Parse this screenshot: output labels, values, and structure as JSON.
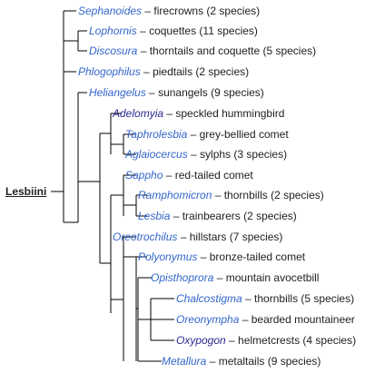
{
  "root": "Lesbiini",
  "leaves": [
    {
      "genus": "Sephanoides",
      "desc": "firecrowns (2 species)",
      "visited": false
    },
    {
      "genus": "Lophornis",
      "desc": "coquettes (11 species)",
      "visited": false
    },
    {
      "genus": "Discosura",
      "desc": "thorntails and coquette (5 species)",
      "visited": false
    },
    {
      "genus": "Phlogophilus",
      "desc": "piedtails (2 species)",
      "visited": false
    },
    {
      "genus": "Heliangelus",
      "desc": "sunangels (9 species)",
      "visited": false
    },
    {
      "genus": "Adelomyia",
      "desc": "speckled hummingbird",
      "visited": true
    },
    {
      "genus": "Taphrolesbia",
      "desc": "grey-bellied comet",
      "visited": false
    },
    {
      "genus": "Aglaiocercus",
      "desc": "sylphs (3 species)",
      "visited": false
    },
    {
      "genus": "Sappho",
      "desc": "red-tailed comet",
      "visited": false
    },
    {
      "genus": "Ramphomicron",
      "desc": "thornbills (2 species)",
      "visited": false
    },
    {
      "genus": "Lesbia",
      "desc": "trainbearers (2 species)",
      "visited": false
    },
    {
      "genus": "Oreotrochilus",
      "desc": "hillstars (7 species)",
      "visited": false
    },
    {
      "genus": "Polyonymus",
      "desc": "bronze-tailed comet",
      "visited": false
    },
    {
      "genus": "Opisthoprora",
      "desc": "mountain avocetbill",
      "visited": false
    },
    {
      "genus": "Chalcostigma",
      "desc": "thornbills (5 species)",
      "visited": false
    },
    {
      "genus": "Oreonympha",
      "desc": "bearded mountaineer",
      "visited": false
    },
    {
      "genus": "Oxypogon",
      "desc": "helmetcrests (4 species)",
      "visited": true
    },
    {
      "genus": "Metallura",
      "desc": "metaltails (9 species)",
      "visited": false
    }
  ],
  "colors": {
    "link": "#3366cc",
    "visited_link": "#2a2a8e",
    "text": "#202122",
    "branch": "#000000"
  }
}
